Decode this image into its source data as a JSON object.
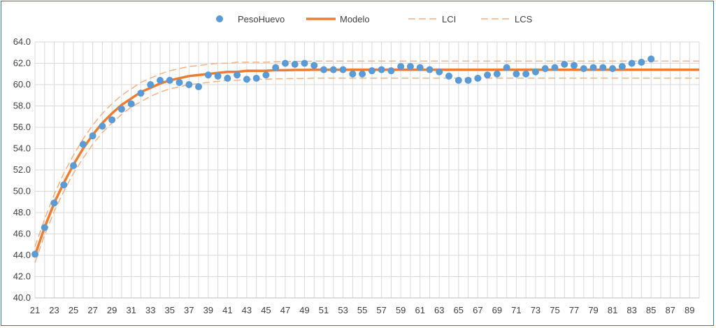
{
  "chart_data": {
    "type": "line",
    "title": "",
    "xlabel": "",
    "ylabel": "",
    "xlim": [
      21,
      90
    ],
    "ylim": [
      40,
      64
    ],
    "y_tick_step": 2,
    "x_tick_labels": [
      "21",
      "23",
      "25",
      "27",
      "29",
      "31",
      "33",
      "35",
      "37",
      "39",
      "41",
      "43",
      "45",
      "47",
      "49",
      "51",
      "53",
      "55",
      "57",
      "59",
      "61",
      "63",
      "65",
      "67",
      "69",
      "71",
      "73",
      "75",
      "77",
      "79",
      "81",
      "83",
      "85",
      "87",
      "89"
    ],
    "y_tick_labels": [
      "40.0",
      "42.0",
      "44.0",
      "46.0",
      "48.0",
      "50.0",
      "52.0",
      "54.0",
      "56.0",
      "58.0",
      "60.0",
      "62.0",
      "64.0"
    ],
    "grid": true,
    "legend_position": "top",
    "legend": [
      {
        "name": "PesoHuevo",
        "type": "scatter",
        "color": "#5b9bd5"
      },
      {
        "name": "Modelo",
        "type": "line",
        "color": "#ed7d31"
      },
      {
        "name": "LCI",
        "type": "dashed-line",
        "color": "#f4b183"
      },
      {
        "name": "LCS",
        "type": "dashed-line",
        "color": "#f4b183"
      }
    ],
    "series": [
      {
        "name": "PesoHuevo",
        "type": "scatter",
        "x": [
          21,
          22,
          23,
          24,
          25,
          26,
          27,
          28,
          29,
          30,
          31,
          32,
          33,
          34,
          35,
          36,
          37,
          38,
          39,
          40,
          41,
          42,
          43,
          44,
          45,
          46,
          47,
          48,
          49,
          50,
          51,
          52,
          53,
          54,
          55,
          56,
          57,
          58,
          59,
          60,
          61,
          62,
          63,
          64,
          65,
          66,
          67,
          68,
          69,
          70,
          71,
          72,
          73,
          74,
          75,
          76,
          77,
          78,
          79,
          80,
          81,
          82,
          83,
          84,
          85
        ],
        "y": [
          44.1,
          46.6,
          48.9,
          50.6,
          52.4,
          54.4,
          55.2,
          56.1,
          56.7,
          57.7,
          58.2,
          59.2,
          60.0,
          60.4,
          60.4,
          60.2,
          60.0,
          59.8,
          60.9,
          60.8,
          60.6,
          60.9,
          60.5,
          60.6,
          60.9,
          61.6,
          62.0,
          61.9,
          62.0,
          61.8,
          61.4,
          61.4,
          61.4,
          61.0,
          61.0,
          61.3,
          61.4,
          61.3,
          61.7,
          61.7,
          61.6,
          61.4,
          61.2,
          60.8,
          60.4,
          60.4,
          60.6,
          60.9,
          61.0,
          61.6,
          61.0,
          61.0,
          61.2,
          61.5,
          61.6,
          61.9,
          61.8,
          61.5,
          61.6,
          61.6,
          61.5,
          61.7,
          62.0,
          62.1,
          62.4
        ]
      },
      {
        "name": "Modelo",
        "type": "line",
        "x": [
          21,
          22,
          23,
          24,
          25,
          26,
          27,
          28,
          29,
          30,
          31,
          32,
          33,
          34,
          35,
          36,
          37,
          38,
          39,
          40,
          41,
          42,
          43,
          44,
          45,
          46,
          47,
          48,
          49,
          50,
          55,
          60,
          65,
          70,
          75,
          80,
          85,
          90
        ],
        "y": [
          44.0,
          46.6,
          48.9,
          50.8,
          52.5,
          54.0,
          55.3,
          56.4,
          57.3,
          58.1,
          58.7,
          59.3,
          59.7,
          60.1,
          60.4,
          60.6,
          60.8,
          60.9,
          61.0,
          61.1,
          61.2,
          61.2,
          61.3,
          61.3,
          61.3,
          61.35,
          61.35,
          61.38,
          61.38,
          61.4,
          61.4,
          61.4,
          61.4,
          61.4,
          61.4,
          61.4,
          61.4,
          61.4
        ]
      },
      {
        "name": "LCI",
        "type": "dashed-line",
        "x": [
          21,
          22,
          23,
          24,
          25,
          26,
          27,
          28,
          29,
          30,
          31,
          32,
          33,
          34,
          35,
          36,
          37,
          38,
          39,
          40,
          41,
          42,
          43,
          44,
          45,
          46,
          47,
          48,
          49,
          50,
          55,
          60,
          65,
          70,
          75,
          80,
          85,
          90
        ],
        "y": [
          43.3,
          45.9,
          48.1,
          50.0,
          51.7,
          53.1,
          54.4,
          55.5,
          56.4,
          57.2,
          57.9,
          58.4,
          58.9,
          59.3,
          59.6,
          59.8,
          60.0,
          60.1,
          60.2,
          60.3,
          60.4,
          60.4,
          60.5,
          60.5,
          60.5,
          60.55,
          60.55,
          60.58,
          60.58,
          60.6,
          60.6,
          60.6,
          60.6,
          60.6,
          60.6,
          60.6,
          60.6,
          60.6
        ]
      },
      {
        "name": "LCS",
        "type": "dashed-line",
        "x": [
          21,
          22,
          23,
          24,
          25,
          26,
          27,
          28,
          29,
          30,
          31,
          32,
          33,
          34,
          35,
          36,
          37,
          38,
          39,
          40,
          41,
          42,
          43,
          44,
          45,
          46,
          47,
          48,
          49,
          50,
          55,
          60,
          65,
          70,
          75,
          80,
          85,
          90
        ],
        "y": [
          44.8,
          47.4,
          49.7,
          51.7,
          53.4,
          54.9,
          56.2,
          57.3,
          58.2,
          59.0,
          59.6,
          60.2,
          60.6,
          61.0,
          61.3,
          61.5,
          61.7,
          61.8,
          61.9,
          62.0,
          62.0,
          62.1,
          62.1,
          62.1,
          62.1,
          62.15,
          62.15,
          62.18,
          62.18,
          62.2,
          62.2,
          62.2,
          62.2,
          62.2,
          62.2,
          62.2,
          62.2,
          62.2
        ]
      }
    ]
  }
}
